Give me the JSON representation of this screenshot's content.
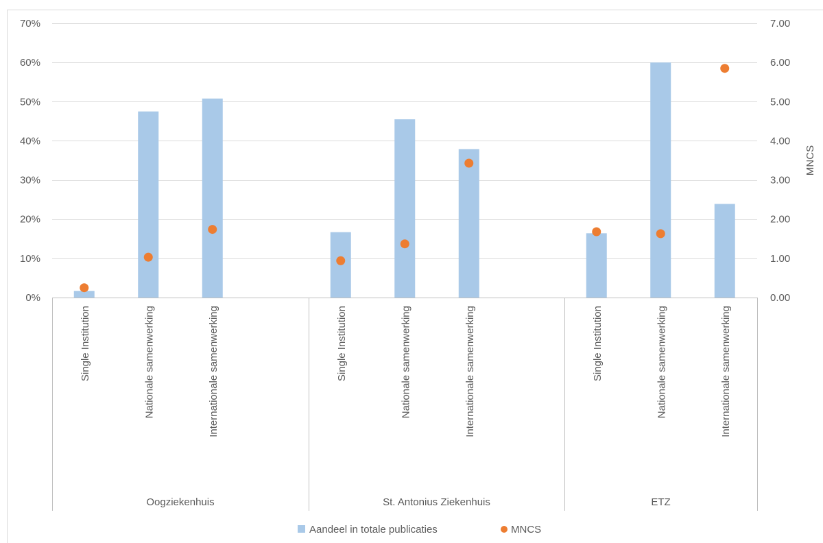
{
  "chart_data": {
    "type": "bar",
    "groups": [
      {
        "name": "Oogziekenhuis",
        "categories": [
          "Single Institution",
          "Nationale samenwerking",
          "Internationale samenwerking"
        ]
      },
      {
        "name": "St. Antonius Ziekenhuis",
        "categories": [
          "Single Institution",
          "Nationale samenwerking",
          "Internationale samenwerking"
        ]
      },
      {
        "name": "ETZ",
        "categories": [
          "Single Institution",
          "Nationale samenwerking",
          "Internationale samenwerking"
        ]
      }
    ],
    "series": [
      {
        "name": "Aandeel in totale publicaties",
        "type": "bar",
        "axis": "left",
        "values": [
          0.017,
          0.475,
          0.508,
          0.167,
          0.455,
          0.379,
          0.164,
          0.6,
          0.239
        ]
      },
      {
        "name": "MNCS",
        "type": "scatter",
        "axis": "right",
        "values": [
          0.25,
          1.03,
          1.74,
          0.94,
          1.37,
          3.43,
          1.68,
          1.63,
          5.85
        ]
      }
    ],
    "y_left": {
      "range": [
        0,
        0.7
      ],
      "ticks": [
        0,
        0.1,
        0.2,
        0.3,
        0.4,
        0.5,
        0.6,
        0.7
      ],
      "tick_labels": [
        "0%",
        "10%",
        "20%",
        "30%",
        "40%",
        "50%",
        "60%",
        "70%"
      ],
      "label": ""
    },
    "y_right": {
      "range": [
        0,
        7
      ],
      "ticks": [
        0,
        1,
        2,
        3,
        4,
        5,
        6,
        7
      ],
      "tick_labels": [
        "0.00",
        "1.00",
        "2.00",
        "3.00",
        "4.00",
        "5.00",
        "6.00",
        "7.00"
      ],
      "label": "MNCS"
    },
    "grid": true,
    "legend_position": "bottom",
    "colors": {
      "bar": "#a9c9e8",
      "dot": "#ed7d31",
      "grid": "#d9d9d9",
      "axis": "#bfbfbf",
      "text": "#595959"
    }
  }
}
